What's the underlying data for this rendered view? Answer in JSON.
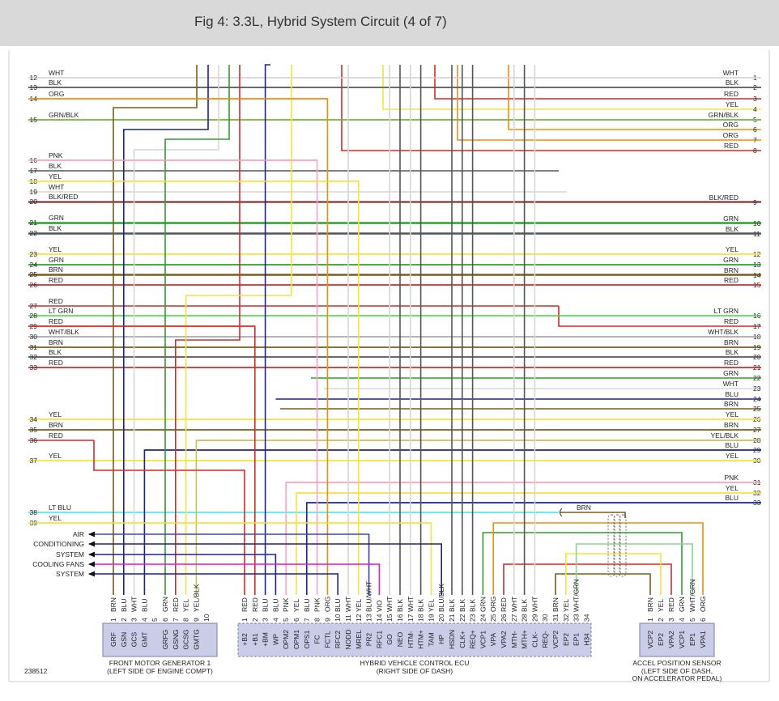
{
  "header": {
    "title": "Fig 4: 3.3L, Hybrid System Circuit (4 of 7)"
  },
  "left_wires": [
    {
      "num": 12,
      "color": "WHT"
    },
    {
      "num": 13,
      "color": "BLK"
    },
    {
      "num": 14,
      "color": "ORG"
    },
    {
      "num": 15,
      "color": "GRN/BLK"
    },
    {
      "num": 16,
      "color": "PNK"
    },
    {
      "num": 17,
      "color": "BLK"
    },
    {
      "num": 18,
      "color": "YEL"
    },
    {
      "num": 19,
      "color": "WHT"
    },
    {
      "num": 20,
      "color": "BLK/RED"
    },
    {
      "num": 21,
      "color": "GRN"
    },
    {
      "num": 22,
      "color": "BLK"
    },
    {
      "num": 23,
      "color": "YEL"
    },
    {
      "num": 24,
      "color": "GRN"
    },
    {
      "num": 25,
      "color": "BRN"
    },
    {
      "num": 26,
      "color": "RED"
    },
    {
      "num": 27,
      "color": "RED"
    },
    {
      "num": 28,
      "color": "LT GRN"
    },
    {
      "num": 29,
      "color": "RED"
    },
    {
      "num": 30,
      "color": "WHT/BLK"
    },
    {
      "num": 31,
      "color": "BRN"
    },
    {
      "num": 32,
      "color": "BLK"
    },
    {
      "num": 33,
      "color": "RED"
    },
    {
      "num": 34,
      "color": "YEL"
    },
    {
      "num": 35,
      "color": "BRN"
    },
    {
      "num": 36,
      "color": "RED"
    },
    {
      "num": 37,
      "color": "YEL"
    },
    {
      "num": 38,
      "color": "LT BLU"
    },
    {
      "num": 39,
      "color": "YEL"
    }
  ],
  "right_wires": [
    {
      "num": 1,
      "color": "WHT"
    },
    {
      "num": 2,
      "color": "BLK"
    },
    {
      "num": 3,
      "color": "RED"
    },
    {
      "num": 4,
      "color": "YEL"
    },
    {
      "num": 5,
      "color": "GRN/BLK"
    },
    {
      "num": 6,
      "color": "ORG"
    },
    {
      "num": 7,
      "color": "ORG"
    },
    {
      "num": 8,
      "color": "RED"
    },
    {
      "num": 9,
      "color": "BLK/RED"
    },
    {
      "num": 10,
      "color": "GRN"
    },
    {
      "num": 11,
      "color": "BLK"
    },
    {
      "num": 12,
      "color": "YEL"
    },
    {
      "num": 13,
      "color": "GRN"
    },
    {
      "num": 14,
      "color": "BRN"
    },
    {
      "num": 15,
      "color": "RED"
    },
    {
      "num": 16,
      "color": "LT GRN"
    },
    {
      "num": 17,
      "color": "RED"
    },
    {
      "num": 18,
      "color": "WHT/BLK"
    },
    {
      "num": 19,
      "color": "BRN"
    },
    {
      "num": 20,
      "color": "BLK"
    },
    {
      "num": 21,
      "color": "RED"
    },
    {
      "num": 22,
      "color": "GRN"
    },
    {
      "num": 23,
      "color": "WHT"
    },
    {
      "num": 24,
      "color": "BLU"
    },
    {
      "num": 25,
      "color": "BRN"
    },
    {
      "num": 26,
      "color": "YEL"
    },
    {
      "num": 27,
      "color": "BRN"
    },
    {
      "num": 28,
      "color": "YEL/BLK"
    },
    {
      "num": 29,
      "color": "BLU"
    },
    {
      "num": 30,
      "color": "YEL"
    },
    {
      "num": 31,
      "color": "PNK"
    },
    {
      "num": 32,
      "color": "YEL"
    },
    {
      "num": 33,
      "color": "BLU"
    }
  ],
  "external_circuits": [
    "AIR",
    "CONDITIONING",
    "SYSTEM",
    "COOLING FANS",
    "SYSTEM"
  ],
  "shield_label": "BRN",
  "connectors": [
    {
      "name": "FRONT MOTOR GENERATOR 1",
      "location": [
        "(LEFT SIDE OF ENGINE COMPT)"
      ],
      "pins": [
        {
          "num": 1,
          "wire": "BRN",
          "name": "GRF"
        },
        {
          "num": 2,
          "wire": "BLU",
          "name": "GSN"
        },
        {
          "num": 3,
          "wire": "WHT",
          "name": "GCS"
        },
        {
          "num": 4,
          "wire": "BLU",
          "name": "GMT"
        },
        {
          "num": 5
        },
        {
          "num": 6,
          "wire": "GRN",
          "name": "GRFG"
        },
        {
          "num": 7,
          "wire": "RED",
          "name": "GSNG"
        },
        {
          "num": 8,
          "wire": "YEL",
          "name": "GCSG"
        },
        {
          "num": 9,
          "wire": "YEL/BLK",
          "name": "GMTG"
        },
        {
          "num": 10
        }
      ]
    },
    {
      "name": "HYBRID VEHICLE CONTROL ECU",
      "location": [
        "(RIGHT SIDE OF DASH)"
      ],
      "pins": [
        {
          "num": 1,
          "wire": "RED",
          "name": "+B2"
        },
        {
          "num": 2,
          "wire": "RED",
          "name": "+B1"
        },
        {
          "num": 3,
          "wire": "BLU",
          "name": "+BM"
        },
        {
          "num": 4,
          "wire": "BLU",
          "name": "WP"
        },
        {
          "num": 5,
          "wire": "PNK",
          "name": "OPM2"
        },
        {
          "num": 6,
          "wire": "YEL",
          "name": "OPM1"
        },
        {
          "num": 7,
          "wire": "BLU",
          "name": "OPS1"
        },
        {
          "num": 8,
          "wire": "PNK",
          "name": "FC"
        },
        {
          "num": 9,
          "wire": "ORG",
          "name": "FCTL"
        },
        {
          "num": 10,
          "wire": "BLU",
          "name": "RFC2"
        },
        {
          "num": 11,
          "wire": "WHT",
          "name": "NODD"
        },
        {
          "num": 12,
          "wire": "YEL",
          "name": "MREL"
        },
        {
          "num": 13,
          "wire": "BLU/WHT",
          "name": "PR2"
        },
        {
          "num": 14,
          "wire": "VIO",
          "name": "RFC1"
        },
        {
          "num": 15,
          "wire": "WHT",
          "name": "GO"
        },
        {
          "num": 16,
          "wire": "BLK",
          "name": "NEO"
        },
        {
          "num": 17,
          "wire": "WHT",
          "name": "HTM-"
        },
        {
          "num": 18,
          "wire": "BLK",
          "name": "HTM+"
        },
        {
          "num": 19,
          "wire": "YEL",
          "name": "TAM"
        },
        {
          "num": 20,
          "wire": "BLU/BLK",
          "name": "HP"
        },
        {
          "num": 21,
          "wire": "BLK",
          "name": "HSDN"
        },
        {
          "num": 22,
          "wire": "BLK",
          "name": "CLK+"
        },
        {
          "num": 23,
          "wire": "BLK",
          "name": "REQ+"
        },
        {
          "num": 24,
          "wire": "GRN",
          "name": "VCP1"
        },
        {
          "num": 25,
          "wire": "ORG",
          "name": "VPA"
        },
        {
          "num": 26,
          "wire": "RED",
          "name": "VPA2"
        },
        {
          "num": 27,
          "wire": "WHT",
          "name": "MTH-"
        },
        {
          "num": 28,
          "wire": "BLK",
          "name": "MTH+"
        },
        {
          "num": 29,
          "wire": "WHT",
          "name": "CLK-"
        },
        {
          "num": 30,
          "name": "REQ-"
        },
        {
          "num": 31,
          "wire": "BRN",
          "name": "VCP2"
        },
        {
          "num": 32,
          "wire": "YEL",
          "name": "EP2"
        },
        {
          "num": 33,
          "wire": "WHT/GRN",
          "name": "EP1"
        },
        {
          "num": 34,
          "name": "H34"
        }
      ]
    },
    {
      "name": "ACCEL POSITION SENSOR",
      "location": [
        "(LEFT SIDE OF DASH,",
        "ON ACCELERATOR PEDAL)"
      ],
      "pins": [
        {
          "num": 1,
          "wire": "BRN",
          "name": "VCP2"
        },
        {
          "num": 2,
          "wire": "YEL",
          "name": "EP2"
        },
        {
          "num": 3,
          "wire": "RED",
          "name": "VPA2"
        },
        {
          "num": 4,
          "wire": "GRN",
          "name": "VCP1"
        },
        {
          "num": 5,
          "wire": "WHT/GRN",
          "name": "EP1"
        },
        {
          "num": 6,
          "wire": "ORG",
          "name": "VPA1"
        }
      ]
    }
  ],
  "figure_id": "238512"
}
